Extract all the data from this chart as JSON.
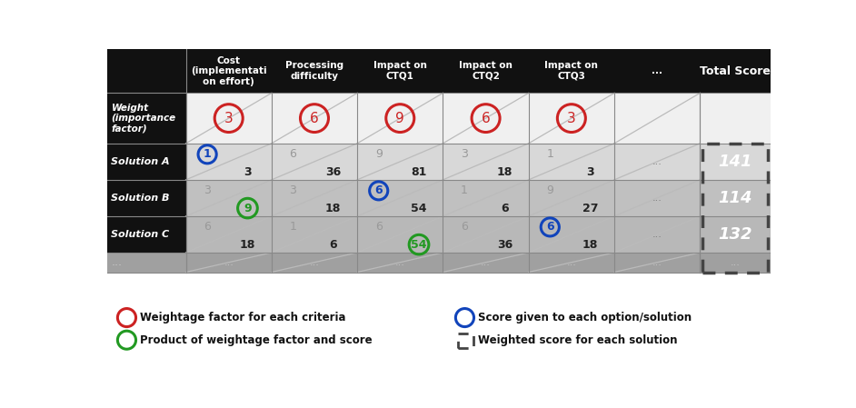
{
  "col_headers": [
    "Cost\n(implementati\non effort)",
    "Processing\ndifficulty",
    "Impact on\nCTQ1",
    "Impact on\nCTQ2",
    "Impact on\nCTQ3",
    "..."
  ],
  "weights": [
    3,
    6,
    9,
    6,
    3
  ],
  "scores": {
    "Solution A": [
      1,
      6,
      9,
      3,
      1
    ],
    "Solution B": [
      3,
      3,
      6,
      1,
      9
    ],
    "Solution C": [
      6,
      1,
      6,
      6,
      6
    ]
  },
  "products": {
    "Solution A": [
      3,
      36,
      81,
      18,
      3
    ],
    "Solution B": [
      9,
      18,
      54,
      6,
      27
    ],
    "Solution C": [
      18,
      6,
      54,
      36,
      18
    ]
  },
  "totals": [
    141,
    114,
    132
  ],
  "header_bg": "#111111",
  "weight_row_bg": "#f0f0f0",
  "sol_bgs": [
    "#d8d8d8",
    "#c0c0c0",
    "#b8b8b8"
  ],
  "dots_row_bg": "#a0a0a0",
  "left_col_bg": "#111111",
  "weight_left_bg": "#111111",
  "total_col_bg": "#a0a0a0",
  "red_color": "#cc2222",
  "blue_color": "#1144bb",
  "green_color": "#229922",
  "legend_items": [
    {
      "label": "Weightage factor for each criteria",
      "color": "#cc2222",
      "type": "circle"
    },
    {
      "label": "Score given to each option/solution",
      "color": "#1144bb",
      "type": "circle"
    },
    {
      "label": "Product of weightage factor and score",
      "color": "#229922",
      "type": "circle"
    },
    {
      "label": "Weighted score for each solution",
      "color": "#444444",
      "type": "dashed_rect"
    }
  ]
}
